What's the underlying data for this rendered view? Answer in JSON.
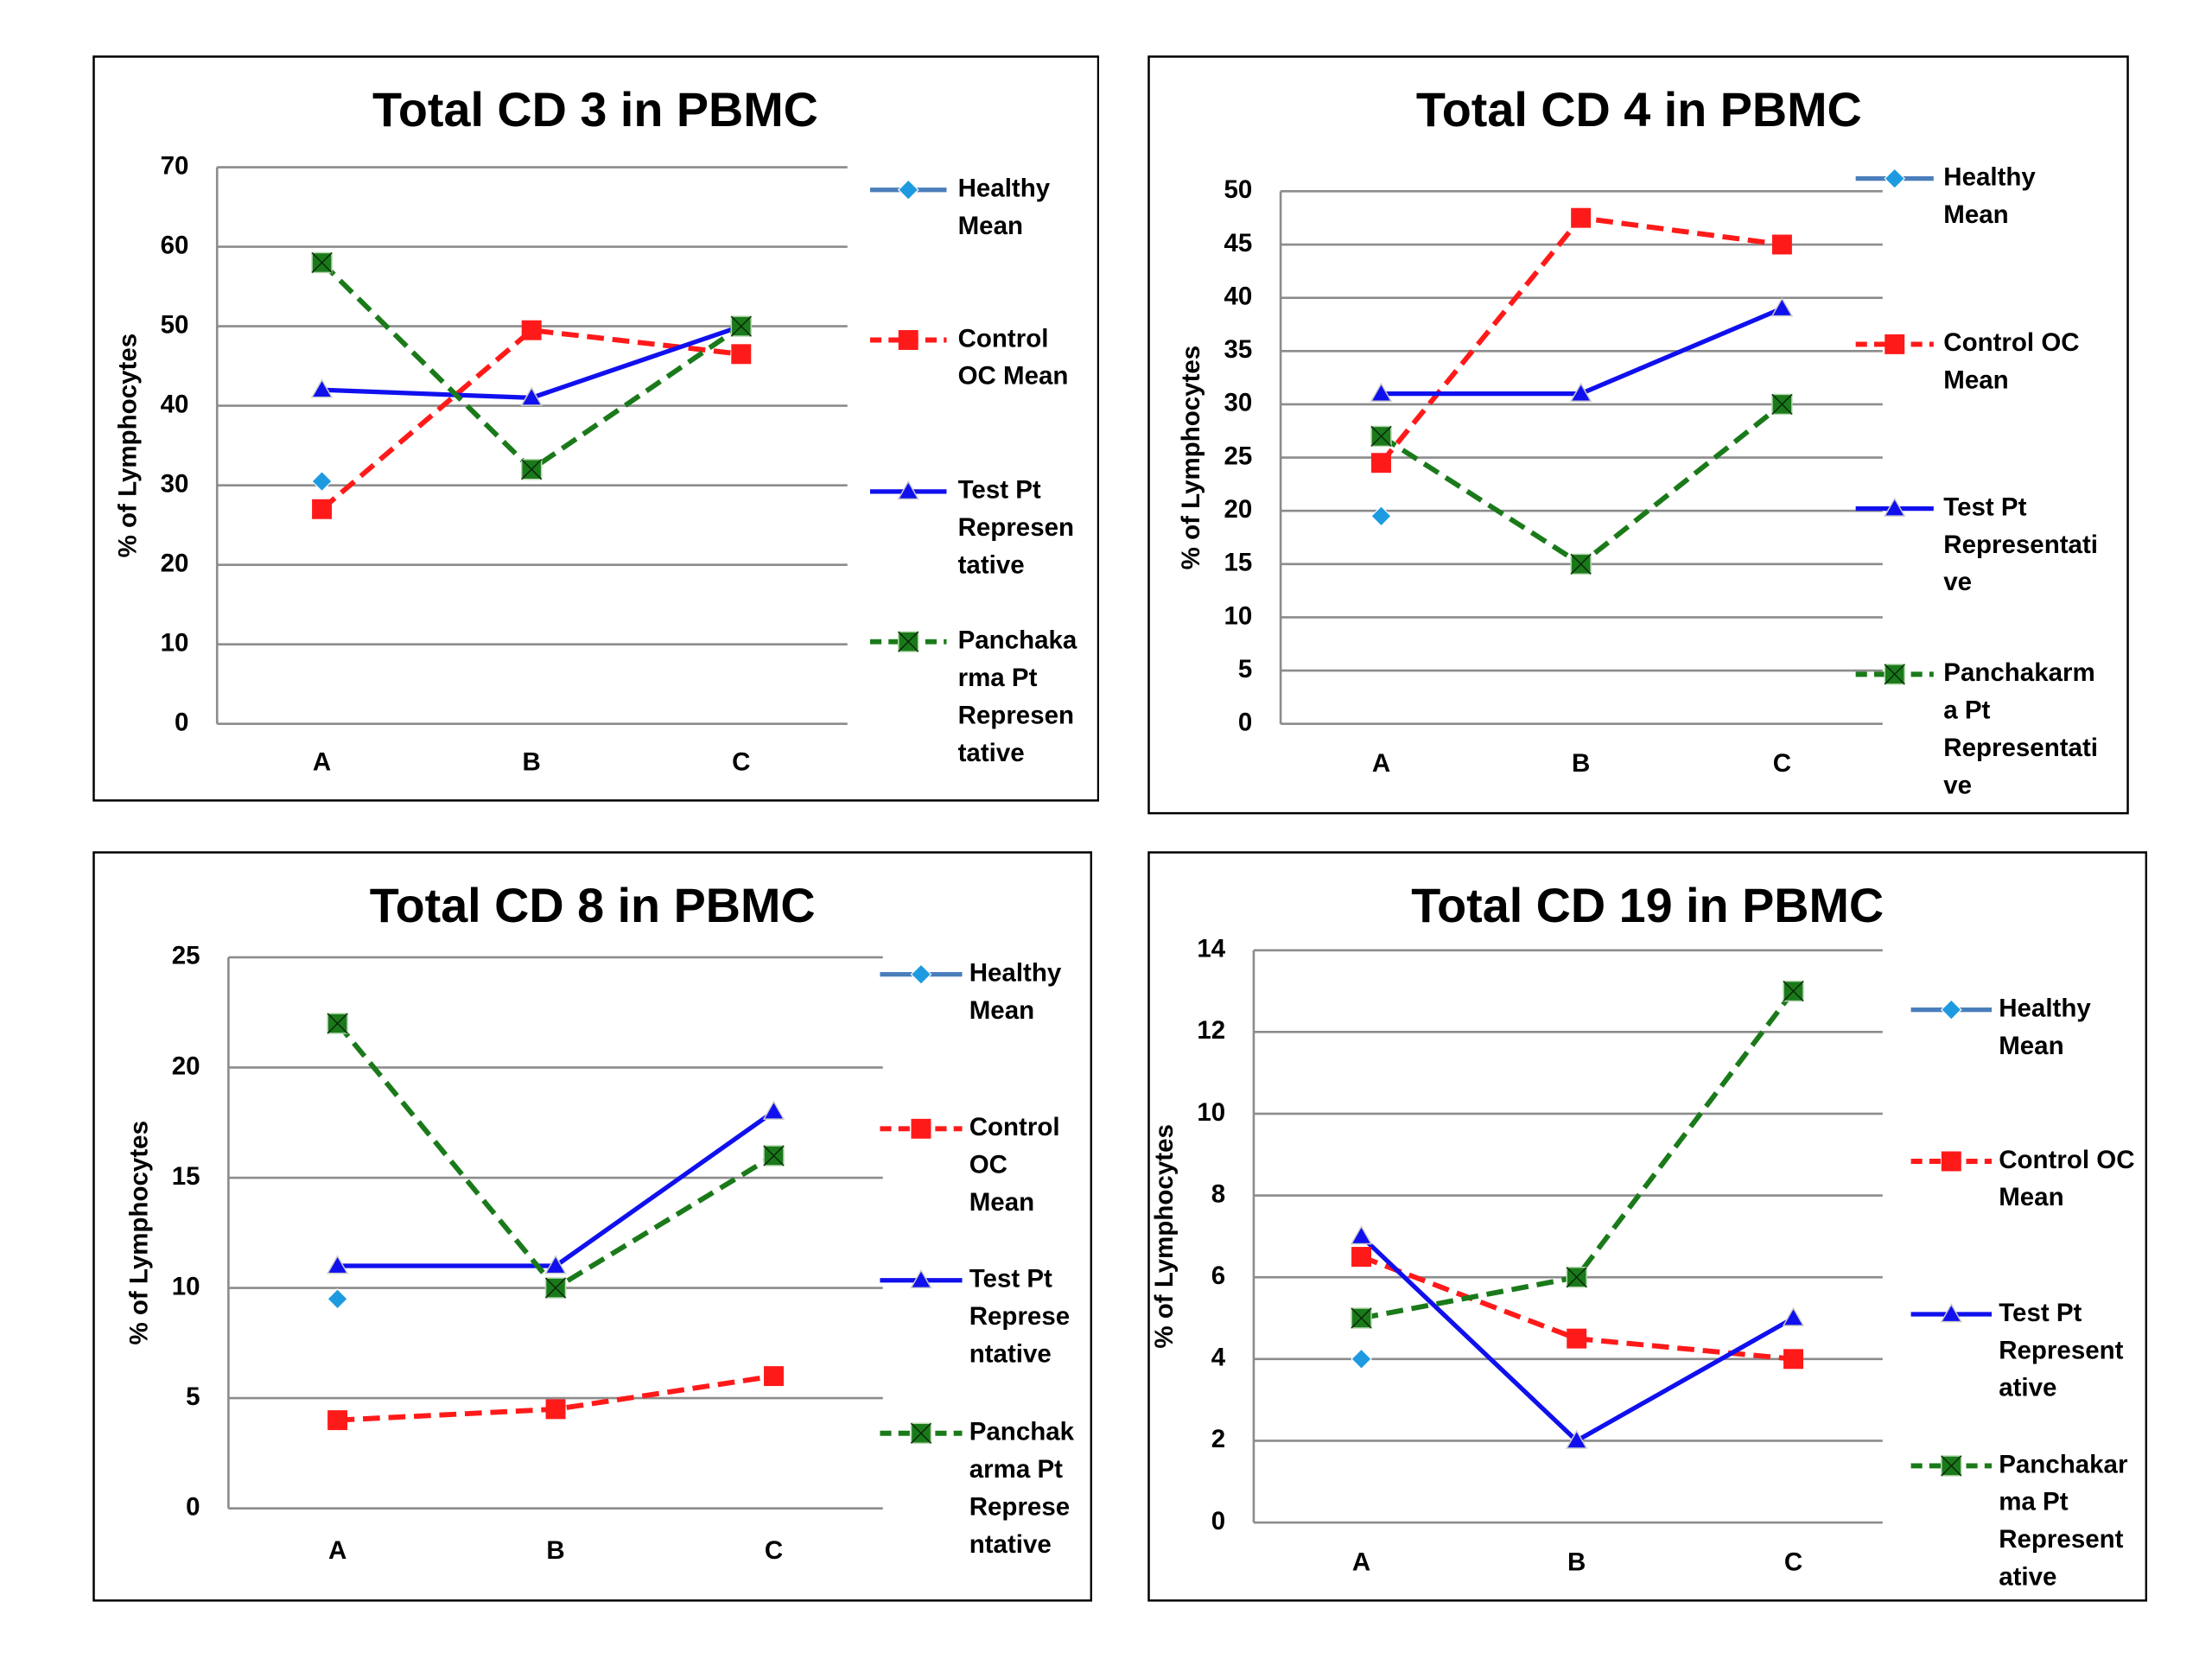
{
  "chart_data": [
    {
      "type": "line",
      "title": "Total CD 3 in PBMC",
      "ylabel": "% of Lymphocytes",
      "xlabel": "",
      "categories": [
        "A",
        "B",
        "C"
      ],
      "ylim": [
        0,
        70
      ],
      "ytick_step": 10,
      "grid": true,
      "legend": "right",
      "series": [
        {
          "name": "Healthy Mean",
          "legend_lines": [
            "Healthy",
            "Mean"
          ],
          "color": "#1E9BE0",
          "line_color": "#4A7EBB",
          "marker": "diamond",
          "dash": false,
          "points": [
            [
              0,
              30.5
            ]
          ]
        },
        {
          "name": "Control OC Mean",
          "legend_lines": [
            "Control",
            "OC Mean"
          ],
          "color": "#FF1A1A",
          "line_color": "#FF1A1A",
          "marker": "square",
          "dash": true,
          "points": [
            [
              0,
              27
            ],
            [
              1,
              49.5
            ],
            [
              2,
              46.5
            ]
          ]
        },
        {
          "name": "Test Pt Representative",
          "legend_lines": [
            "Test Pt",
            "Represen",
            "tative"
          ],
          "color": "#1010EE",
          "line_color": "#1010EE",
          "marker": "triangle",
          "dash": false,
          "points": [
            [
              0,
              42
            ],
            [
              1,
              41
            ],
            [
              2,
              50
            ]
          ]
        },
        {
          "name": "Panchakarma Pt Representative",
          "legend_lines": [
            "Panchaka",
            "rma Pt",
            "Represen",
            "tative"
          ],
          "color": "#1A7A1A",
          "line_color": "#1A7A1A",
          "marker": "xsquare",
          "dash": true,
          "points": [
            [
              0,
              58
            ],
            [
              1,
              32
            ],
            [
              2,
              50
            ]
          ]
        }
      ]
    },
    {
      "type": "line",
      "title": "Total CD 4 in PBMC",
      "ylabel": "% of Lymphocytes",
      "xlabel": "",
      "categories": [
        "A",
        "B",
        "C"
      ],
      "ylim": [
        0,
        50
      ],
      "ytick_step": 5,
      "grid": true,
      "legend": "right",
      "series": [
        {
          "name": "Healthy Mean",
          "legend_lines": [
            "Healthy",
            "Mean"
          ],
          "color": "#1E9BE0",
          "line_color": "#4A7EBB",
          "marker": "diamond",
          "dash": false,
          "points": [
            [
              0,
              19.5
            ]
          ]
        },
        {
          "name": "Control OC Mean",
          "legend_lines": [
            "Control OC",
            "Mean"
          ],
          "color": "#FF1A1A",
          "line_color": "#FF1A1A",
          "marker": "square",
          "dash": true,
          "points": [
            [
              0,
              24.5
            ],
            [
              1,
              47.5
            ],
            [
              2,
              45
            ]
          ]
        },
        {
          "name": "Test Pt Representative",
          "legend_lines": [
            "Test Pt",
            "Representati",
            "ve"
          ],
          "color": "#1010EE",
          "line_color": "#1010EE",
          "marker": "triangle",
          "dash": false,
          "points": [
            [
              0,
              31
            ],
            [
              1,
              31
            ],
            [
              2,
              39
            ]
          ]
        },
        {
          "name": "Panchakarma Pt Representative",
          "legend_lines": [
            "Panchakarm",
            "a Pt",
            "Representati",
            "ve"
          ],
          "color": "#1A7A1A",
          "line_color": "#1A7A1A",
          "marker": "xsquare",
          "dash": true,
          "points": [
            [
              0,
              27
            ],
            [
              1,
              15
            ],
            [
              2,
              30
            ]
          ]
        }
      ]
    },
    {
      "type": "line",
      "title": "Total CD 8  in PBMC",
      "ylabel": "% of Lymphocytes",
      "xlabel": "",
      "categories": [
        "A",
        "B",
        "C"
      ],
      "ylim": [
        0,
        25
      ],
      "ytick_step": 5,
      "grid": true,
      "legend": "right",
      "series": [
        {
          "name": "Healthy Mean",
          "legend_lines": [
            "Healthy",
            "Mean"
          ],
          "color": "#1E9BE0",
          "line_color": "#4A7EBB",
          "marker": "diamond",
          "dash": false,
          "points": [
            [
              0,
              9.5
            ]
          ]
        },
        {
          "name": "Control OC Mean",
          "legend_lines": [
            "Control",
            "OC",
            "Mean"
          ],
          "color": "#FF1A1A",
          "line_color": "#FF1A1A",
          "marker": "square",
          "dash": true,
          "points": [
            [
              0,
              4
            ],
            [
              1,
              4.5
            ],
            [
              2,
              6
            ]
          ]
        },
        {
          "name": "Test Pt Representative",
          "legend_lines": [
            "Test Pt",
            "Represe",
            "ntative"
          ],
          "color": "#1010EE",
          "line_color": "#1010EE",
          "marker": "triangle",
          "dash": false,
          "points": [
            [
              0,
              11
            ],
            [
              1,
              11
            ],
            [
              2,
              18
            ]
          ]
        },
        {
          "name": "Panchakarma Pt Representative",
          "legend_lines": [
            "Panchak",
            "arma Pt",
            "Represe",
            "ntative"
          ],
          "color": "#1A7A1A",
          "line_color": "#1A7A1A",
          "marker": "xsquare",
          "dash": true,
          "points": [
            [
              0,
              22
            ],
            [
              1,
              10
            ],
            [
              2,
              16
            ]
          ]
        }
      ]
    },
    {
      "type": "line",
      "title": "Total CD 19 in PBMC",
      "ylabel": "% of Lymphocytes",
      "xlabel": "",
      "categories": [
        "A",
        "B",
        "C"
      ],
      "ylim": [
        0,
        14
      ],
      "ytick_step": 2,
      "grid": true,
      "legend": "right",
      "series": [
        {
          "name": "Healthy Mean",
          "legend_lines": [
            "Healthy",
            "Mean"
          ],
          "color": "#1E9BE0",
          "line_color": "#4A7EBB",
          "marker": "diamond",
          "dash": false,
          "points": [
            [
              0,
              4
            ]
          ]
        },
        {
          "name": "Control OC Mean",
          "legend_lines": [
            "Control OC",
            "Mean"
          ],
          "color": "#FF1A1A",
          "line_color": "#FF1A1A",
          "marker": "square",
          "dash": true,
          "points": [
            [
              0,
              6.5
            ],
            [
              1,
              4.5
            ],
            [
              2,
              4
            ]
          ]
        },
        {
          "name": "Test Pt Representative",
          "legend_lines": [
            "Test Pt",
            "Represent",
            "ative"
          ],
          "color": "#1010EE",
          "line_color": "#1010EE",
          "marker": "triangle",
          "dash": false,
          "points": [
            [
              0,
              7
            ],
            [
              1,
              2
            ],
            [
              2,
              5
            ]
          ]
        },
        {
          "name": "Panchakarma Pt Representative",
          "legend_lines": [
            "Panchakar",
            "ma Pt",
            "Represent",
            "ative"
          ],
          "color": "#1A7A1A",
          "line_color": "#1A7A1A",
          "marker": "xsquare",
          "dash": true,
          "points": [
            [
              0,
              5
            ],
            [
              1,
              6
            ],
            [
              2,
              13
            ]
          ]
        }
      ]
    }
  ]
}
